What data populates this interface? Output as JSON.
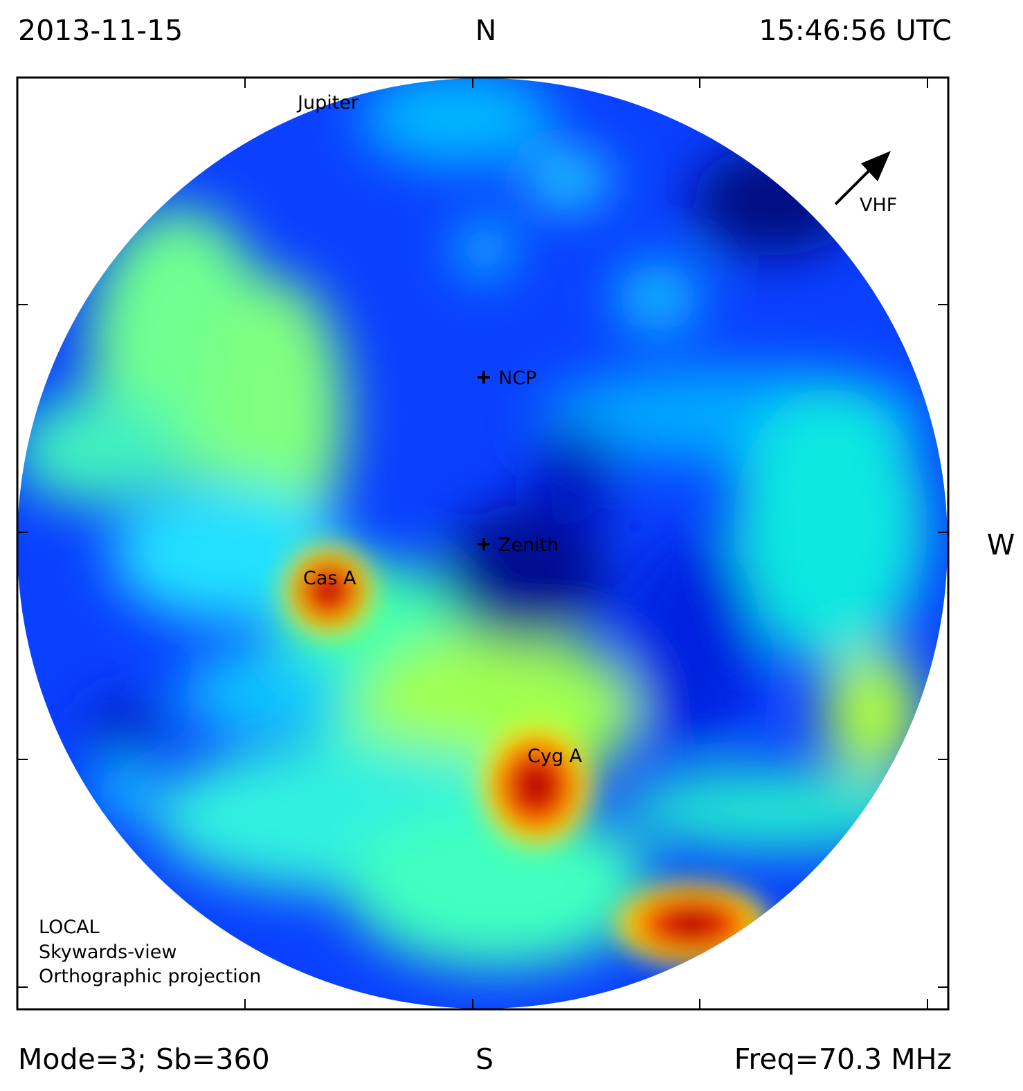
{
  "header": {
    "date": "2013-11-15",
    "north": "N",
    "time": "15:46:56 UTC"
  },
  "side": {
    "west": "W"
  },
  "footer": {
    "mode": "Mode=3; Sb=360",
    "south": "S",
    "freq": "Freq=70.3 MHz"
  },
  "markers": {
    "jupiter": "Jupiter",
    "ncp": "NCP",
    "zenith": "Zenith",
    "cas_a": "Cas A",
    "cyg_a": "Cyg A",
    "vhf": "VHF"
  },
  "info": {
    "line1": "LOCAL",
    "line2": "Skywards-view",
    "line3": "Orthographic projection"
  }
}
